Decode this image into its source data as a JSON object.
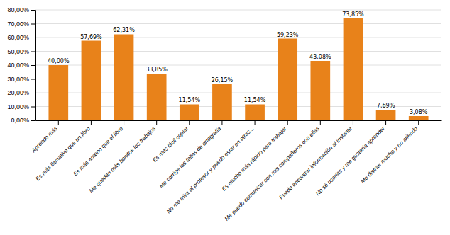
{
  "chart_data": {
    "type": "bar",
    "categories": [
      "Aprendo más",
      "Es más llamativo que un libro",
      "Es más ameno que el libro",
      "Me quedan más bonitos los trabajos",
      "Es más fácil copiar",
      "Me corrige las faltas de ortografía",
      "No me mira el profesor y puedo estar en otras...",
      "Es mucho más rápido para trabajar",
      "Me puedo comunicar con mis compañeros con ellas",
      "Puedo encontrar información al instante",
      "No sé usarlas y me gustaría aprender",
      "Me distrae mucho y no atiendo"
    ],
    "values": [
      40.0,
      57.69,
      62.31,
      33.85,
      11.54,
      26.15,
      11.54,
      59.23,
      43.08,
      73.85,
      7.69,
      3.08
    ],
    "value_labels": [
      "40,00%",
      "57,69%",
      "62,31%",
      "33,85%",
      "11,54%",
      "26,15%",
      "11,54%",
      "59,23%",
      "43,08%",
      "73,85%",
      "7,69%",
      "3,08%"
    ],
    "data_labels": true,
    "color": "#E8821A",
    "ylim": [
      0,
      80
    ],
    "yticks": [
      {
        "value": 0,
        "label": "0,00%"
      },
      {
        "value": 10,
        "label": "10,00%"
      },
      {
        "value": 20,
        "label": "20,00%"
      },
      {
        "value": 30,
        "label": "30,00%"
      },
      {
        "value": 40,
        "label": "40,00%"
      },
      {
        "value": 50,
        "label": "50,00%"
      },
      {
        "value": 60,
        "label": "60,00%"
      },
      {
        "value": 70,
        "label": "70,00%"
      },
      {
        "value": 80,
        "label": "80,00%"
      }
    ],
    "grid": true
  }
}
